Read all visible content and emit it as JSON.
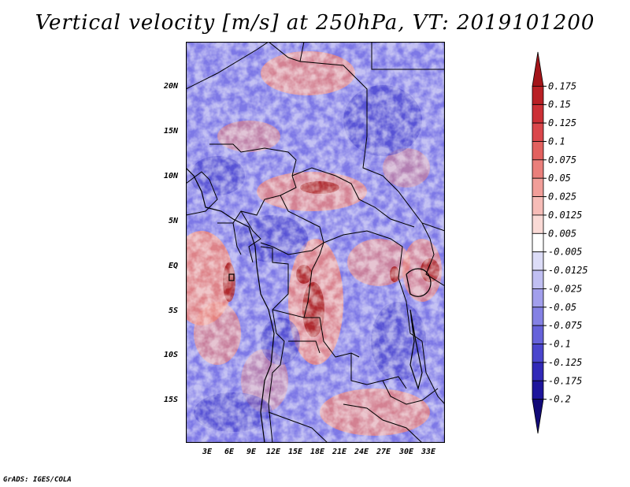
{
  "title": "Vertical velocity [m/s] at 250hPa, VT: 2019101200",
  "footer": "GrADS: IGES/COLA",
  "map": {
    "lat_labels": [
      "20N",
      "15N",
      "10N",
      "5N",
      "EQ",
      "5S",
      "10S",
      "15S"
    ],
    "lon_labels": [
      "3E",
      "6E",
      "9E",
      "12E",
      "15E",
      "18E",
      "21E",
      "24E",
      "27E",
      "30E",
      "33E"
    ]
  },
  "colorbar": {
    "labels": [
      "0.175",
      "0.15",
      "0.125",
      "0.1",
      "0.075",
      "0.05",
      "0.025",
      "0.0125",
      "0.005",
      "-0.005",
      "-0.0125",
      "-0.025",
      "-0.05",
      "-0.075",
      "-0.1",
      "-0.125",
      "-0.175",
      "-0.2"
    ],
    "colors": [
      "#a31419",
      "#b92025",
      "#cc3036",
      "#da474b",
      "#e2615f",
      "#ea7f7b",
      "#f19e99",
      "#f6bcb7",
      "#fadad6",
      "#ffffff",
      "#dcdcf7",
      "#c0bff2",
      "#a29fec",
      "#8481e4",
      "#6662da",
      "#4a45cd",
      "#3129b8",
      "#1e159c",
      "#120a78"
    ]
  },
  "colors": {
    "positive": "#e0342f",
    "negative": "#3b35c6"
  }
}
